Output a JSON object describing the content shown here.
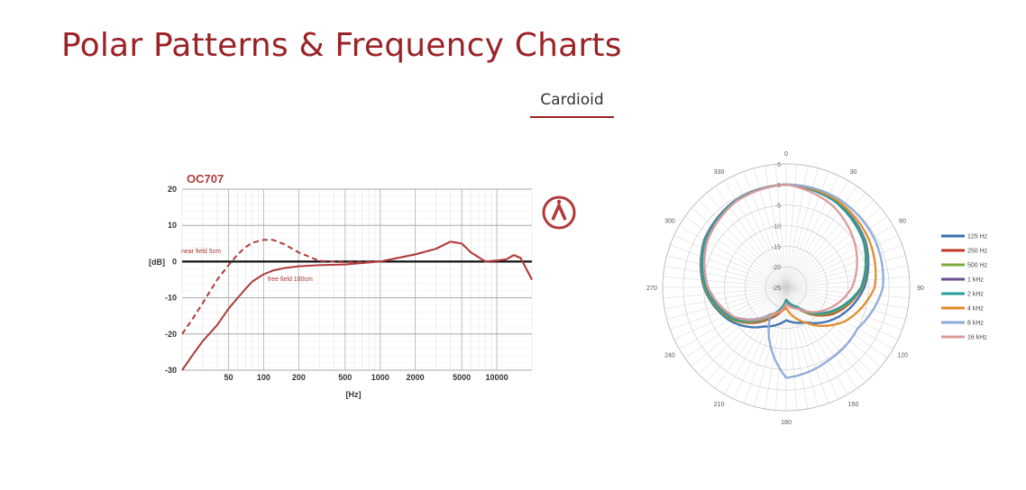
{
  "page": {
    "title": "Polar Patterns & Frequency Charts",
    "tab_label": "Cardioid"
  },
  "chart_data": [
    {
      "type": "line",
      "title": "OC707",
      "xlabel": "[Hz]",
      "ylabel": "[dB]",
      "x_scale": "log",
      "xlim": [
        20,
        20000
      ],
      "ylim": [
        -30,
        20
      ],
      "x_ticks": [
        50,
        100,
        200,
        500,
        1000,
        2000,
        5000,
        10000
      ],
      "y_ticks": [
        20,
        10,
        0,
        -10,
        -20,
        -30
      ],
      "y_tick_labels": [
        "20",
        "10",
        "0",
        "-10",
        "-20",
        "-30"
      ],
      "annotations": [
        "near field 5cm",
        "free field 100cm"
      ],
      "series": [
        {
          "name": "near field 5cm",
          "style": "dashed",
          "color": "#b03a3a",
          "x": [
            20,
            25,
            30,
            40,
            50,
            60,
            70,
            80,
            100,
            120,
            150,
            200,
            300,
            500,
            1000,
            2000,
            3000,
            4000,
            5000,
            6000,
            8000,
            10000,
            12000,
            14000,
            16000,
            20000
          ],
          "y": [
            -20,
            -15.5,
            -11.5,
            -5,
            -1,
            2,
            4,
            5.2,
            6,
            6,
            4.8,
            2.5,
            0.2,
            -0.2,
            0,
            2,
            3.5,
            5.5,
            5,
            2.5,
            0,
            0.3,
            0.6,
            1.8,
            1,
            -5
          ]
        },
        {
          "name": "free field 100cm",
          "style": "solid",
          "color": "#b03a3a",
          "x": [
            20,
            25,
            30,
            40,
            50,
            60,
            70,
            80,
            100,
            120,
            150,
            200,
            300,
            500,
            1000,
            2000,
            3000,
            4000,
            5000,
            6000,
            8000,
            10000,
            12000,
            14000,
            16000,
            20000
          ],
          "y": [
            -30,
            -25.5,
            -22,
            -17.5,
            -13,
            -10,
            -7.5,
            -5.5,
            -3.5,
            -2.5,
            -1.8,
            -1.3,
            -1,
            -0.8,
            0,
            2,
            3.5,
            5.5,
            5,
            2.5,
            0,
            0.3,
            0.6,
            1.8,
            1,
            -5
          ]
        }
      ]
    },
    {
      "type": "line",
      "subtype": "polar",
      "angle_labels": [
        "0",
        "30",
        "60",
        "90",
        "120",
        "150",
        "180",
        "210",
        "240",
        "270",
        "300",
        "330"
      ],
      "radial_ticks": [
        5,
        0,
        -5,
        -10,
        -15,
        -20,
        -25
      ],
      "radial_tick_labels": [
        "5",
        "0",
        "-5",
        "-10",
        "-15",
        "-20",
        "-25"
      ],
      "rlim": [
        -25,
        5
      ],
      "legend_position": "right",
      "angles_deg": [
        0,
        30,
        60,
        90,
        120,
        150,
        180,
        210,
        240,
        270,
        300,
        330
      ],
      "series": [
        {
          "name": "125 Hz",
          "color": "#3a6fb0",
          "values": [
            0,
            -0.8,
            -2.7,
            -6,
            -10.5,
            -15.2,
            -17,
            -14,
            -9,
            -5,
            -2,
            -0.5
          ]
        },
        {
          "name": "250 Hz",
          "color": "#c0392b",
          "values": [
            0,
            -0.9,
            -3,
            -6.5,
            -12,
            -19,
            -21,
            -16,
            -9.5,
            -5.2,
            -2.2,
            -0.6
          ]
        },
        {
          "name": "500 Hz",
          "color": "#7daa3a",
          "values": [
            0,
            -0.9,
            -3,
            -6.5,
            -12.5,
            -19,
            -21.5,
            -16.5,
            -9.5,
            -5.2,
            -2.2,
            -0.6
          ]
        },
        {
          "name": "1 kHz",
          "color": "#6a4c93",
          "values": [
            0,
            -1,
            -3.2,
            -6.8,
            -13,
            -19.5,
            -22,
            -17,
            -10,
            -5.5,
            -2.3,
            -0.6
          ]
        },
        {
          "name": "2 kHz",
          "color": "#2a9d9d",
          "values": [
            0,
            -1,
            -3.2,
            -6.8,
            -13,
            -19.5,
            -22,
            -17,
            -10,
            -5.5,
            -2.3,
            -0.6
          ]
        },
        {
          "name": "4 kHz",
          "color": "#e08a2a",
          "values": [
            0,
            -0.5,
            -1.8,
            -3.5,
            -8.5,
            -15,
            -20,
            -17.5,
            -10.5,
            -6,
            -2.8,
            -0.8
          ]
        },
        {
          "name": "8 kHz",
          "color": "#8aaad8",
          "values": [
            0,
            0,
            -0.5,
            -1.5,
            -5,
            -4.5,
            -3,
            -17.5,
            -10.5,
            -6,
            -2.8,
            -0.8
          ]
        },
        {
          "name": "16 kHz",
          "color": "#d99a9a",
          "values": [
            0,
            -2.2,
            -5.5,
            -9,
            -14,
            -19,
            -21,
            -17,
            -10.5,
            -6,
            -2.8,
            -0.8
          ]
        }
      ]
    }
  ]
}
